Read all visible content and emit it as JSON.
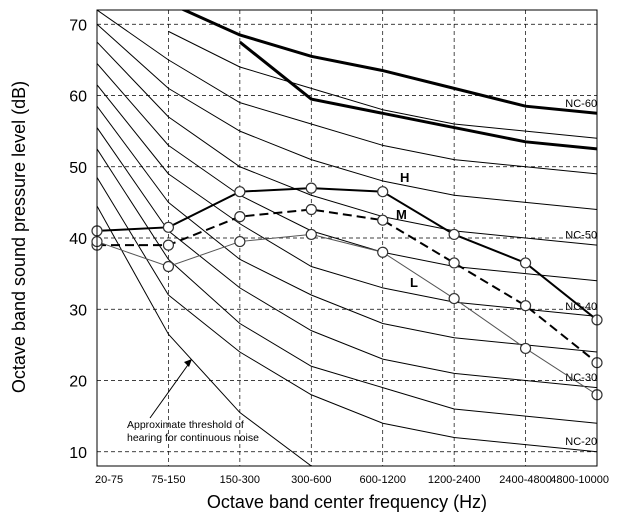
{
  "chart_data": {
    "type": "line",
    "xlabel": "Octave band center frequency (Hz)",
    "ylabel": "Octave band  sound pressure  level (dB)",
    "categories": [
      "20-75",
      "75-150",
      "150-300",
      "300-600",
      "600-1200",
      "1200-2400",
      "2400-4800",
      "4800-10000"
    ],
    "ylim": [
      8,
      72
    ],
    "yticks": [
      10,
      20,
      30,
      40,
      50,
      60,
      70
    ],
    "grid": true,
    "nc_curves": [
      {
        "label": "",
        "values": [
          null,
          26.5,
          15.5,
          8,
          null,
          null,
          null,
          null
        ]
      },
      {
        "label": "NC-20",
        "values": [
          null,
          32,
          24,
          18,
          14,
          12,
          11,
          10
        ]
      },
      {
        "label": "",
        "values": [
          null,
          37,
          28,
          22,
          19,
          16,
          15,
          14
        ]
      },
      {
        "label": "NC-30",
        "values": [
          null,
          41,
          33,
          27,
          23,
          21,
          20,
          19
        ]
      },
      {
        "label": "",
        "values": [
          null,
          45,
          37,
          32,
          28,
          26,
          25,
          24
        ]
      },
      {
        "label": "NC-40",
        "values": [
          null,
          49,
          42,
          36,
          33,
          31,
          30,
          29
        ]
      },
      {
        "label": "",
        "values": [
          null,
          53,
          46,
          41,
          38,
          36,
          35,
          34
        ]
      },
      {
        "label": "NC-50",
        "values": [
          null,
          57,
          50,
          46,
          43,
          41,
          40,
          39
        ]
      },
      {
        "label": "",
        "values": [
          null,
          61,
          55,
          51,
          48,
          46,
          45,
          44
        ]
      },
      {
        "label": "",
        "values": [
          null,
          65,
          59,
          56,
          53,
          51,
          50,
          49
        ]
      },
      {
        "label": "",
        "values": [
          null,
          69,
          64,
          61,
          58,
          56,
          55,
          54
        ]
      },
      {
        "label": "NC-60",
        "values": [
          null,
          73,
          68.5,
          65.5,
          63.5,
          61,
          58.5,
          57.5
        ]
      }
    ],
    "nc_bold_curve": {
      "values": [
        null,
        null,
        67.5,
        59.5,
        57.5,
        55.5,
        53.5,
        52.5
      ]
    },
    "nc_left_curves": [
      {
        "values": [
          44.5,
          26.5
        ]
      },
      {
        "values": [
          48.5,
          32
        ]
      },
      {
        "values": [
          52.5,
          37
        ]
      },
      {
        "values": [
          55.5,
          41
        ]
      },
      {
        "values": [
          58.5,
          45
        ]
      },
      {
        "values": [
          61.5,
          49
        ]
      },
      {
        "values": [
          64.5,
          53
        ]
      },
      {
        "values": [
          67.5,
          57
        ]
      },
      {
        "values": [
          70,
          61
        ]
      },
      {
        "values": [
          72,
          65
        ]
      }
    ],
    "series": [
      {
        "name": "H",
        "style": "solid-bold",
        "values": [
          41,
          41.5,
          46.5,
          47,
          46.5,
          40.5,
          36.5,
          28.5
        ]
      },
      {
        "name": "M",
        "style": "dashed",
        "values": [
          39,
          39,
          43,
          44,
          42.5,
          36.5,
          30.5,
          22.5
        ]
      },
      {
        "name": "L",
        "style": "thin",
        "values": [
          39.5,
          36,
          39.5,
          40.5,
          38,
          31.5,
          24.5,
          18
        ]
      }
    ],
    "annotation": {
      "lines": [
        "Approximate threshold of",
        "hearing for continuous noise"
      ]
    },
    "colors": {
      "line": "#000000",
      "thin": "#555555",
      "grid": "#000000",
      "marker_fill": "#ffffff"
    }
  }
}
